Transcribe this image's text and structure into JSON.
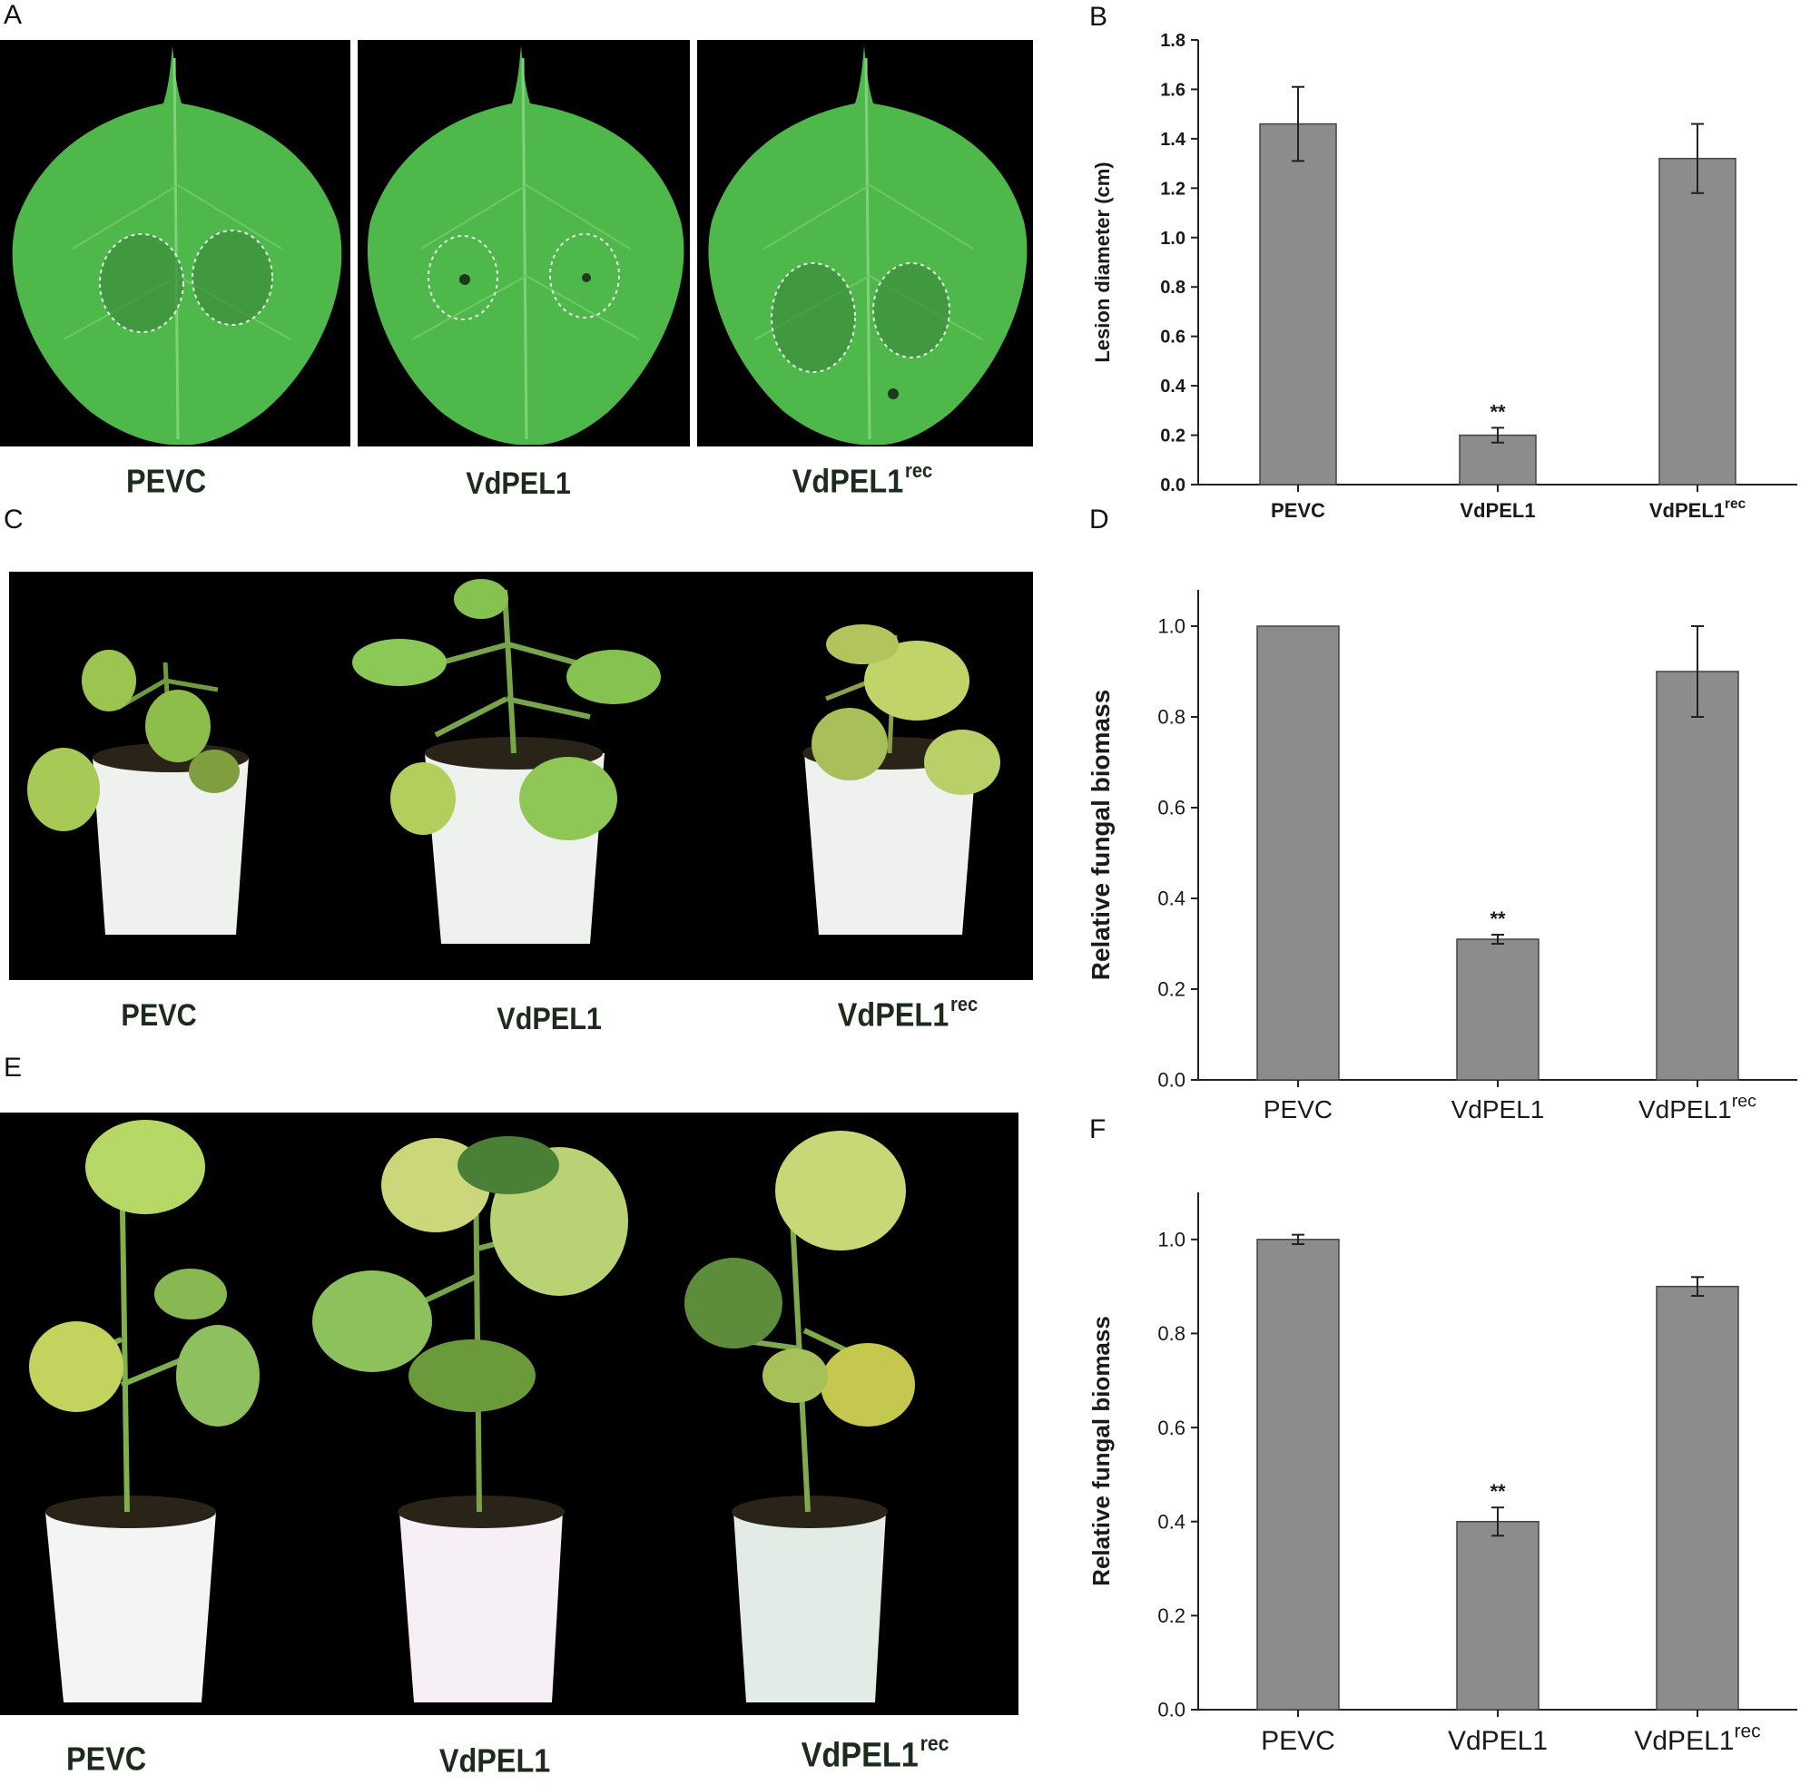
{
  "panels": {
    "A": {
      "letter": "A",
      "labels": [
        {
          "main": "PEVC",
          "sup": ""
        },
        {
          "main": "VdPEL1",
          "sup": ""
        },
        {
          "main": "VdPEL1",
          "sup": "rec"
        }
      ]
    },
    "B": {
      "letter": "B"
    },
    "C": {
      "letter": "C",
      "labels": [
        {
          "main": "PEVC",
          "sup": ""
        },
        {
          "main": "VdPEL1",
          "sup": ""
        },
        {
          "main": "VdPEL1",
          "sup": "rec"
        }
      ]
    },
    "D": {
      "letter": "D"
    },
    "E": {
      "letter": "E",
      "labels": [
        {
          "main": "PEVC",
          "sup": ""
        },
        {
          "main": "VdPEL1",
          "sup": ""
        },
        {
          "main": "VdPEL1",
          "sup": "rec"
        }
      ]
    },
    "F": {
      "letter": "F"
    }
  },
  "colors": {
    "bar_fill": "#8c8c8c",
    "bar_stroke": "#444444",
    "leaf_green": "#4fb84a",
    "photo_background": "#000000",
    "pot_white": "#eef1ee"
  },
  "chart_data": [
    {
      "panel": "B",
      "type": "bar",
      "categories": [
        "PEVC",
        "VdPEL1",
        "VdPEL1"
      ],
      "category_sups": [
        "",
        "",
        "rec"
      ],
      "values": [
        1.46,
        0.2,
        1.32
      ],
      "errors": [
        0.15,
        0.03,
        0.14
      ],
      "annotations": [
        "",
        "**",
        ""
      ],
      "ylabel": "Lesion diameter (cm)",
      "xlabel": "",
      "title": "",
      "ylim": [
        0,
        1.8
      ],
      "yticks": [
        "0.0",
        "0.2",
        "0.4",
        "0.6",
        "0.8",
        "1.0",
        "1.2",
        "1.4",
        "1.6",
        "1.8"
      ],
      "grid": false,
      "legend": "none"
    },
    {
      "panel": "D",
      "type": "bar",
      "categories": [
        "PEVC",
        "VdPEL1",
        "VdPEL1"
      ],
      "category_sups": [
        "",
        "",
        "rec"
      ],
      "values": [
        1.0,
        0.31,
        0.9
      ],
      "errors": [
        0,
        0.01,
        0.1
      ],
      "annotations": [
        "",
        "**",
        ""
      ],
      "ylabel": "Relative fungal biomass",
      "xlabel": "",
      "title": "",
      "ylim": [
        0,
        1.08
      ],
      "yticks": [
        "0.0",
        "0.2",
        "0.4",
        "0.6",
        "0.8",
        "1.0"
      ],
      "grid": false,
      "legend": "none"
    },
    {
      "panel": "F",
      "type": "bar",
      "categories": [
        "PEVC",
        "VdPEL1",
        "VdPEL1"
      ],
      "category_sups": [
        "",
        "",
        "rec"
      ],
      "values": [
        1.0,
        0.4,
        0.9
      ],
      "errors": [
        0.01,
        0.03,
        0.02
      ],
      "annotations": [
        "",
        "**",
        ""
      ],
      "ylabel": "Relative fungal biomass",
      "xlabel": "",
      "title": "",
      "ylim": [
        0,
        1.1
      ],
      "yticks": [
        "0.0",
        "0.2",
        "0.4",
        "0.6",
        "0.8",
        "1.0"
      ],
      "grid": false,
      "legend": "none"
    }
  ]
}
